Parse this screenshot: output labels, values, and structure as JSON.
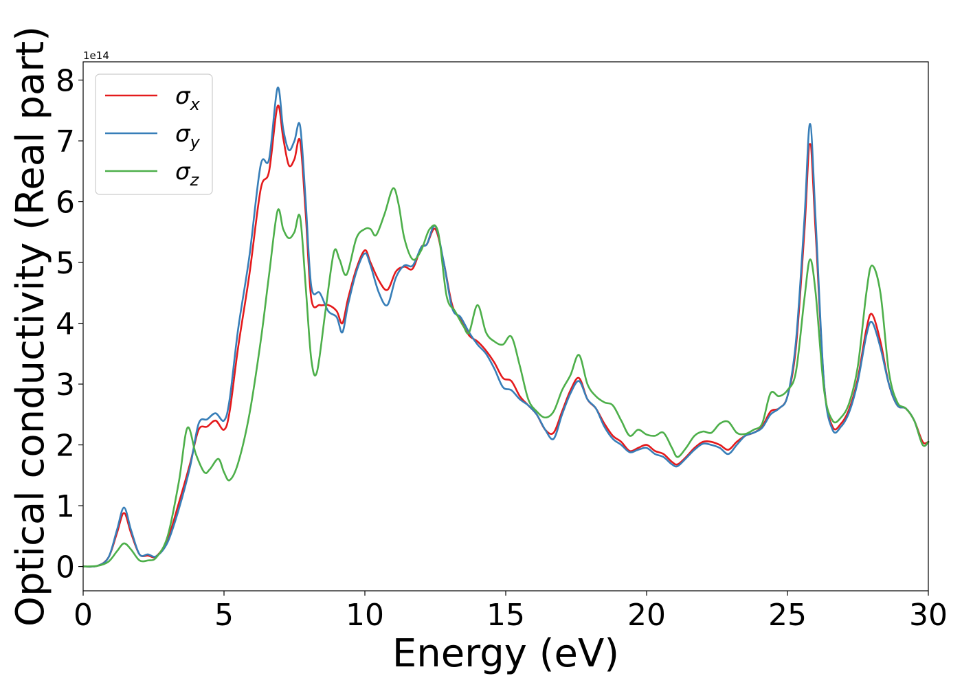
{
  "chart_data": {
    "type": "line",
    "xlabel": "Energy (eV)",
    "ylabel": "Optical conductivity (Real part)",
    "y_offset_text": "1e14",
    "y_scale": 100000000000000.0,
    "xlim": [
      0,
      30
    ],
    "ylim": [
      -0.4,
      8.3
    ],
    "x_ticks": [
      0,
      5,
      10,
      15,
      20,
      25,
      30
    ],
    "y_ticks": [
      0,
      1,
      2,
      3,
      4,
      5,
      6,
      7,
      8
    ],
    "grid": false,
    "legend_placement": "upper-left",
    "series": [
      {
        "name": "x",
        "color": "#e41a1c",
        "x": [
          0,
          0.5,
          0.9,
          1.2,
          1.45,
          1.7,
          2.0,
          2.3,
          2.6,
          3.0,
          3.4,
          3.8,
          4.1,
          4.4,
          4.7,
          5.0,
          5.2,
          5.5,
          5.9,
          6.3,
          6.6,
          6.9,
          7.1,
          7.3,
          7.5,
          7.7,
          7.9,
          8.1,
          8.4,
          8.7,
          9.0,
          9.2,
          9.4,
          9.7,
          10.0,
          10.2,
          10.5,
          10.8,
          11.1,
          11.4,
          11.7,
          12.0,
          12.2,
          12.5,
          12.8,
          13.1,
          13.4,
          13.7,
          14.0,
          14.3,
          14.6,
          14.9,
          15.2,
          15.5,
          15.8,
          16.1,
          16.4,
          16.7,
          17.0,
          17.3,
          17.6,
          17.9,
          18.2,
          18.5,
          18.8,
          19.1,
          19.4,
          19.7,
          20.0,
          20.3,
          20.6,
          20.9,
          21.1,
          21.4,
          21.7,
          22.0,
          22.3,
          22.6,
          22.9,
          23.2,
          23.5,
          23.8,
          24.1,
          24.4,
          24.7,
          25.0,
          25.3,
          25.6,
          25.8,
          26.0,
          26.3,
          26.6,
          26.9,
          27.2,
          27.5,
          27.8,
          28.0,
          28.3,
          28.6,
          28.9,
          29.2,
          29.5,
          29.8,
          30.0
        ],
        "values": [
          0.0,
          0.01,
          0.15,
          0.55,
          0.88,
          0.55,
          0.2,
          0.18,
          0.17,
          0.45,
          1.05,
          1.7,
          2.25,
          2.3,
          2.4,
          2.25,
          2.55,
          3.6,
          4.8,
          6.2,
          6.5,
          7.57,
          7.05,
          6.6,
          6.7,
          7.0,
          5.8,
          4.4,
          4.3,
          4.3,
          4.2,
          4.0,
          4.4,
          4.9,
          5.2,
          5.0,
          4.7,
          4.55,
          4.85,
          4.93,
          4.9,
          5.25,
          5.3,
          5.55,
          5.0,
          4.3,
          4.05,
          3.8,
          3.7,
          3.55,
          3.35,
          3.1,
          3.05,
          2.8,
          2.65,
          2.5,
          2.25,
          2.2,
          2.55,
          2.9,
          3.1,
          2.75,
          2.6,
          2.35,
          2.15,
          2.05,
          1.9,
          1.95,
          2.0,
          1.9,
          1.85,
          1.72,
          1.68,
          1.8,
          1.95,
          2.05,
          2.05,
          2.0,
          1.92,
          2.05,
          2.15,
          2.2,
          2.3,
          2.55,
          2.6,
          2.8,
          3.6,
          5.5,
          6.95,
          5.5,
          3.0,
          2.3,
          2.35,
          2.6,
          3.1,
          3.9,
          4.15,
          3.7,
          3.0,
          2.65,
          2.6,
          2.4,
          2.05,
          2.05
        ]
      },
      {
        "name": "y",
        "color": "#377eb8",
        "x": [
          0,
          0.5,
          0.9,
          1.2,
          1.45,
          1.7,
          2.0,
          2.3,
          2.6,
          3.0,
          3.4,
          3.8,
          4.1,
          4.4,
          4.7,
          5.0,
          5.2,
          5.5,
          5.9,
          6.3,
          6.6,
          6.9,
          7.1,
          7.3,
          7.5,
          7.7,
          7.9,
          8.1,
          8.4,
          8.7,
          9.0,
          9.2,
          9.4,
          9.7,
          10.0,
          10.2,
          10.5,
          10.8,
          11.1,
          11.4,
          11.7,
          12.0,
          12.2,
          12.5,
          12.8,
          13.1,
          13.4,
          13.7,
          14.0,
          14.3,
          14.6,
          14.9,
          15.2,
          15.5,
          15.8,
          16.1,
          16.4,
          16.7,
          17.0,
          17.3,
          17.6,
          17.9,
          18.2,
          18.5,
          18.8,
          19.1,
          19.4,
          19.7,
          20.0,
          20.3,
          20.6,
          20.9,
          21.1,
          21.4,
          21.7,
          22.0,
          22.3,
          22.6,
          22.9,
          23.2,
          23.5,
          23.8,
          24.1,
          24.4,
          24.7,
          25.0,
          25.3,
          25.6,
          25.8,
          26.0,
          26.3,
          26.6,
          26.9,
          27.2,
          27.5,
          27.8,
          28.0,
          28.3,
          28.6,
          28.9,
          29.2,
          29.5,
          29.8,
          30.0
        ],
        "values": [
          0.0,
          0.01,
          0.15,
          0.6,
          0.97,
          0.6,
          0.2,
          0.2,
          0.17,
          0.4,
          0.95,
          1.65,
          2.35,
          2.42,
          2.52,
          2.4,
          2.75,
          3.9,
          5.1,
          6.6,
          6.7,
          7.87,
          7.2,
          6.85,
          7.0,
          7.25,
          6.0,
          4.6,
          4.5,
          4.2,
          4.1,
          3.85,
          4.3,
          4.85,
          5.15,
          4.95,
          4.5,
          4.3,
          4.75,
          4.95,
          4.95,
          5.25,
          5.3,
          5.6,
          5.0,
          4.25,
          4.1,
          3.85,
          3.65,
          3.5,
          3.25,
          2.95,
          2.9,
          2.75,
          2.65,
          2.5,
          2.25,
          2.1,
          2.5,
          2.85,
          3.05,
          2.75,
          2.6,
          2.3,
          2.1,
          2.0,
          1.88,
          1.92,
          1.95,
          1.85,
          1.8,
          1.68,
          1.65,
          1.78,
          1.92,
          2.02,
          2.0,
          1.95,
          1.85,
          2.0,
          2.15,
          2.2,
          2.28,
          2.5,
          2.6,
          2.8,
          3.7,
          5.7,
          7.28,
          5.7,
          3.0,
          2.25,
          2.3,
          2.55,
          3.05,
          3.8,
          4.02,
          3.6,
          3.0,
          2.65,
          2.6,
          2.4,
          2.0,
          2.05
        ]
      },
      {
        "name": "z",
        "color": "#4daf4a",
        "x": [
          0,
          0.5,
          0.9,
          1.2,
          1.45,
          1.7,
          2.0,
          2.3,
          2.6,
          3.0,
          3.4,
          3.7,
          4.0,
          4.3,
          4.5,
          4.8,
          5.0,
          5.2,
          5.5,
          5.9,
          6.3,
          6.6,
          6.9,
          7.1,
          7.3,
          7.5,
          7.7,
          7.9,
          8.1,
          8.3,
          8.6,
          8.9,
          9.1,
          9.35,
          9.7,
          10.0,
          10.2,
          10.4,
          10.7,
          11.0,
          11.2,
          11.4,
          11.7,
          12.0,
          12.3,
          12.6,
          12.9,
          13.2,
          13.5,
          13.7,
          14.0,
          14.3,
          14.6,
          14.9,
          15.2,
          15.5,
          15.8,
          16.1,
          16.4,
          16.7,
          17.0,
          17.3,
          17.6,
          17.9,
          18.2,
          18.5,
          18.8,
          19.1,
          19.4,
          19.7,
          20.0,
          20.3,
          20.6,
          20.9,
          21.1,
          21.4,
          21.7,
          22.0,
          22.3,
          22.6,
          22.9,
          23.2,
          23.5,
          23.8,
          24.1,
          24.4,
          24.7,
          25.0,
          25.3,
          25.6,
          25.8,
          26.0,
          26.3,
          26.6,
          26.9,
          27.2,
          27.5,
          27.8,
          28.0,
          28.3,
          28.6,
          28.9,
          29.2,
          29.5,
          29.8,
          30.0
        ],
        "values": [
          0.0,
          0.01,
          0.08,
          0.25,
          0.38,
          0.28,
          0.1,
          0.1,
          0.15,
          0.5,
          1.4,
          2.28,
          1.85,
          1.55,
          1.6,
          1.77,
          1.55,
          1.42,
          1.7,
          2.5,
          3.7,
          4.8,
          5.85,
          5.55,
          5.4,
          5.5,
          5.75,
          4.6,
          3.4,
          3.2,
          4.2,
          5.17,
          5.05,
          4.8,
          5.4,
          5.55,
          5.55,
          5.45,
          5.8,
          6.22,
          5.95,
          5.4,
          5.05,
          5.2,
          5.55,
          5.5,
          4.45,
          4.2,
          3.95,
          3.85,
          4.3,
          3.85,
          3.7,
          3.65,
          3.78,
          3.3,
          2.75,
          2.55,
          2.45,
          2.55,
          2.9,
          3.15,
          3.48,
          3.0,
          2.8,
          2.7,
          2.65,
          2.4,
          2.15,
          2.25,
          2.17,
          2.15,
          2.2,
          1.95,
          1.8,
          1.95,
          2.15,
          2.22,
          2.2,
          2.35,
          2.38,
          2.2,
          2.18,
          2.25,
          2.35,
          2.85,
          2.8,
          2.9,
          3.2,
          4.4,
          5.05,
          4.5,
          2.9,
          2.4,
          2.45,
          2.7,
          3.3,
          4.5,
          4.95,
          4.5,
          3.2,
          2.7,
          2.6,
          2.4,
          2.0,
          2.05
        ]
      }
    ]
  }
}
